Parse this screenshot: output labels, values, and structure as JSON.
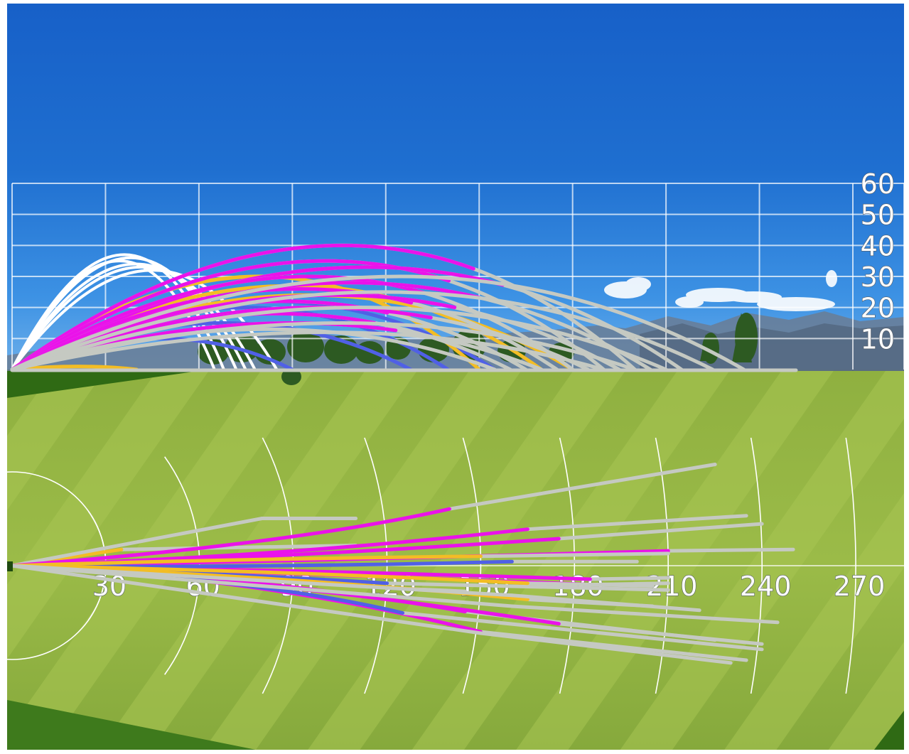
{
  "chart_data": [
    {
      "type": "line",
      "view": "side",
      "y_ticks": [
        "60",
        "50",
        "40",
        "30",
        "20",
        "10"
      ],
      "y_tick_values": [
        60,
        50,
        40,
        30,
        20,
        10
      ],
      "ylim": [
        0,
        60
      ],
      "xlim": [
        0,
        270
      ],
      "grid": true,
      "series": [
        {
          "color": "white",
          "carry": 65,
          "apex": 35
        },
        {
          "color": "white",
          "carry": 68,
          "apex": 37
        },
        {
          "color": "white",
          "carry": 72,
          "apex": 36
        },
        {
          "color": "white",
          "carry": 75,
          "apex": 34
        },
        {
          "color": "white",
          "carry": 78,
          "apex": 33
        },
        {
          "color": "white",
          "carry": 85,
          "apex": 32
        },
        {
          "color": "blue",
          "carry": 90,
          "apex": 10
        },
        {
          "color": "blue",
          "carry": 128,
          "apex": 15
        },
        {
          "color": "blue",
          "carry": 140,
          "apex": 20
        },
        {
          "color": "blue",
          "carry": 155,
          "apex": 22
        },
        {
          "color": "yellow",
          "carry": 40,
          "apex": 1
        },
        {
          "color": "yellow",
          "carry": 150,
          "apex": 30
        },
        {
          "color": "yellow",
          "carry": 170,
          "apex": 27
        },
        {
          "color": "yellow",
          "carry": 180,
          "apex": 24
        },
        {
          "color": "magenta",
          "carry": 200,
          "apex": 40
        },
        {
          "color": "magenta",
          "carry": 190,
          "apex": 35
        },
        {
          "color": "magenta",
          "carry": 215,
          "apex": 33
        },
        {
          "color": "magenta",
          "carry": 180,
          "apex": 30
        },
        {
          "color": "magenta",
          "carry": 205,
          "apex": 28
        },
        {
          "color": "magenta",
          "carry": 175,
          "apex": 26
        },
        {
          "color": "magenta",
          "carry": 195,
          "apex": 24
        },
        {
          "color": "magenta",
          "carry": 165,
          "apex": 22
        },
        {
          "color": "magenta",
          "carry": 185,
          "apex": 20
        },
        {
          "color": "magenta",
          "carry": 160,
          "apex": 18
        },
        {
          "color": "magenta",
          "carry": 170,
          "apex": 15
        },
        {
          "color": "gray",
          "carry": 235,
          "apex": 30
        },
        {
          "color": "gray",
          "carry": 225,
          "apex": 25
        },
        {
          "color": "gray",
          "carry": 210,
          "apex": 20
        },
        {
          "color": "gray",
          "carry": 200,
          "apex": 15
        },
        {
          "color": "gray",
          "carry": 190,
          "apex": 12
        },
        {
          "color": "gray",
          "carry": 155,
          "apex": 13
        }
      ]
    },
    {
      "type": "line",
      "view": "top",
      "x_ticks": [
        "30",
        "60",
        "90",
        "120",
        "150",
        "180",
        "210",
        "240",
        "270"
      ],
      "x_tick_values": [
        30,
        60,
        90,
        120,
        150,
        180,
        210,
        240,
        270
      ],
      "xlim": [
        0,
        280
      ],
      "series": [
        {
          "color": "yellow",
          "offline": [
            [
              35,
              -12
            ]
          ],
          "total": [
            110,
            -15
          ]
        },
        {
          "color": "gray",
          "offline": [
            [
              80,
              -35
            ]
          ],
          "total": [
            110,
            -35
          ]
        },
        {
          "color": "magenta",
          "offline": [
            [
              90,
              -16
            ],
            [
              140,
              -42
            ]
          ],
          "total": [
            225,
            -75
          ]
        },
        {
          "color": "magenta",
          "offline": [
            [
              90,
              -7
            ],
            [
              165,
              -27
            ]
          ],
          "total": [
            235,
            -37
          ]
        },
        {
          "color": "magenta",
          "offline": [
            [
              90,
              -6
            ],
            [
              175,
              -20
            ]
          ],
          "total": [
            240,
            -31
          ]
        },
        {
          "color": "magenta",
          "offline": [
            [
              90,
              -3
            ],
            [
              210,
              -11
            ]
          ],
          "total": [
            250,
            -12
          ]
        },
        {
          "color": "magenta",
          "offline": [
            [
              90,
              3
            ],
            [
              185,
              10
            ]
          ],
          "total": [
            210,
            9
          ]
        },
        {
          "color": "magenta",
          "offline": [
            [
              90,
              5
            ],
            [
              185,
              14
            ]
          ],
          "total": [
            210,
            13
          ]
        },
        {
          "color": "magenta",
          "offline": [
            [
              80,
              8
            ],
            [
              145,
              34
            ]
          ],
          "total": [
            225,
            55
          ]
        },
        {
          "color": "magenta",
          "offline": [
            [
              80,
              9
            ],
            [
              175,
              43
            ]
          ],
          "total": [
            240,
            58
          ]
        },
        {
          "color": "magenta",
          "offline": [
            [
              80,
              8
            ],
            [
              150,
              49
            ]
          ],
          "total": [
            235,
            70
          ]
        },
        {
          "color": "blue",
          "offline": [
            [
              70,
              2
            ],
            [
              160,
              -3
            ]
          ],
          "total": [
            200,
            -3
          ]
        },
        {
          "color": "blue",
          "offline": [
            [
              65,
              6
            ],
            [
              125,
              17
            ]
          ],
          "total": [
            145,
            19
          ]
        },
        {
          "color": "blue",
          "offline": [
            [
              80,
              10
            ],
            [
              125,
              35
            ]
          ],
          "total": [
            240,
            62
          ]
        },
        {
          "color": "blue",
          "offline": [
            [
              70,
              6
            ],
            [
              120,
              13
            ]
          ],
          "total": [
            210,
            18
          ]
        },
        {
          "color": "yellow",
          "offline": [
            [
              90,
              4
            ],
            [
              165,
              13
            ]
          ],
          "total": [
            205,
            15
          ]
        },
        {
          "color": "yellow",
          "offline": [
            [
              90,
              8
            ],
            [
              165,
              25
            ]
          ],
          "total": [
            205,
            30
          ]
        },
        {
          "color": "yellow",
          "offline": [
            [
              70,
              -5
            ],
            [
              150,
              -7
            ]
          ],
          "total": [
            210,
            -9
          ]
        },
        {
          "color": "gray",
          "offline": [
            [
              160,
              30
            ]
          ],
          "total": [
            245,
            42
          ]
        },
        {
          "color": "gray",
          "offline": [
            [
              150,
              50
            ]
          ],
          "total": [
            230,
            72
          ]
        },
        {
          "color": "gray",
          "offline": [
            [
              160,
              22
            ]
          ],
          "total": [
            220,
            33
          ]
        }
      ]
    }
  ]
}
